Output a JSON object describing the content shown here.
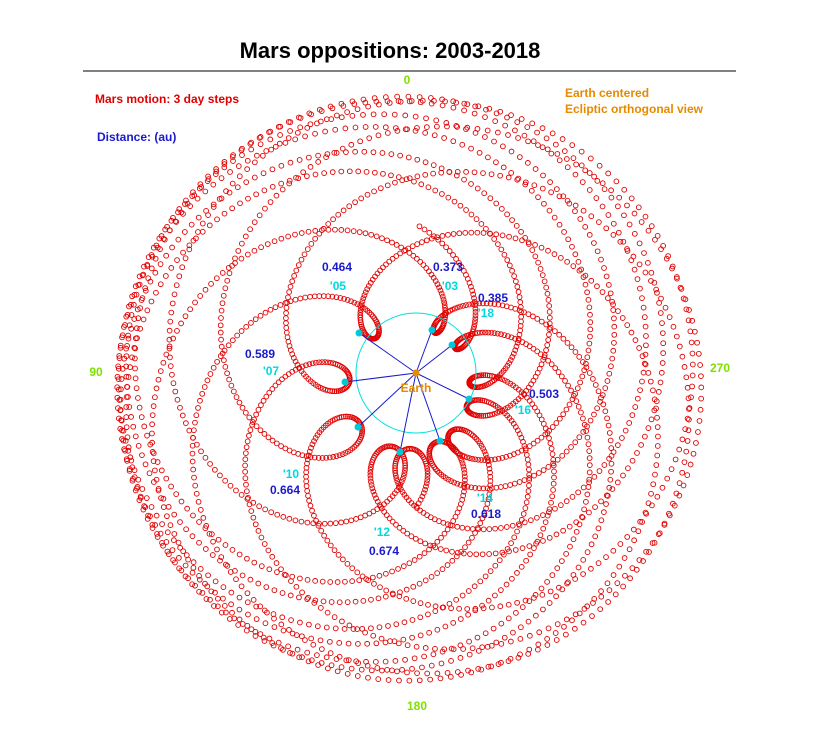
{
  "title": "Mars oppositions:  2003-2018",
  "legend": {
    "motion": "Mars motion: 3 day steps",
    "distance": "Distance: (au)",
    "view": [
      "Earth centered",
      "Ecliptic orthogonal view"
    ]
  },
  "center_label": "Earth",
  "axis_labels": {
    "top": "0",
    "left": "90",
    "bottom": "180",
    "right": "270"
  },
  "oppositions": [
    {
      "year": "'03",
      "distance": "0.373"
    },
    {
      "year": "'05",
      "distance": "0.464"
    },
    {
      "year": "'07",
      "distance": "0.589"
    },
    {
      "year": "'10",
      "distance": "0.664"
    },
    {
      "year": "'12",
      "distance": "0.674"
    },
    {
      "year": "'14",
      "distance": "0.618"
    },
    {
      "year": "'16",
      "distance": "0.503"
    },
    {
      "year": "'18",
      "distance": "0.385"
    }
  ]
}
